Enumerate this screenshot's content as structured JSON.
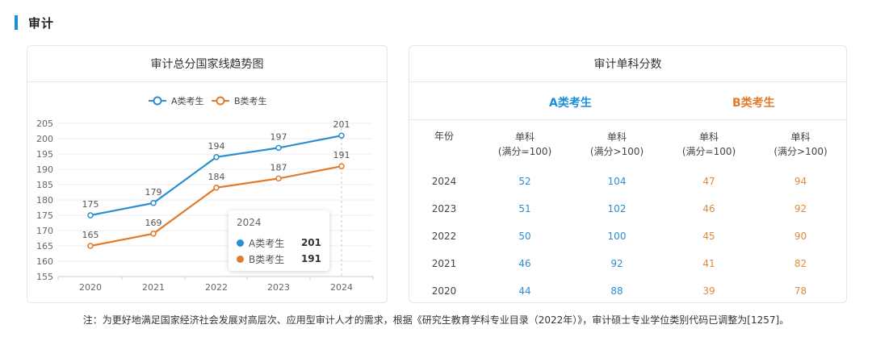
{
  "section": {
    "title": "审计"
  },
  "left_card": {
    "title": "审计总分国家线趋势图"
  },
  "chart_data": {
    "type": "line",
    "title": "审计总分国家线趋势图",
    "x": [
      "2020",
      "2021",
      "2022",
      "2023",
      "2024"
    ],
    "series": [
      {
        "name": "A类考生",
        "values": [
          175,
          179,
          194,
          197,
          201
        ],
        "color": "#2a8ed0"
      },
      {
        "name": "B类考生",
        "values": [
          165,
          169,
          184,
          187,
          191
        ],
        "color": "#e07b2c"
      }
    ],
    "y_ticks": [
      155,
      160,
      165,
      170,
      175,
      180,
      185,
      190,
      195,
      200,
      205
    ],
    "ylim": [
      155,
      205
    ],
    "legend": "top-center",
    "grid": true
  },
  "tooltip": {
    "year": "2024",
    "rows": [
      {
        "name": "A类考生",
        "value": "201",
        "color": "#2a8ed0"
      },
      {
        "name": "B类考生",
        "value": "191",
        "color": "#e07b2c"
      }
    ]
  },
  "right_card": {
    "title": "审计单科分数",
    "group_a": "A类考生",
    "group_b": "B类考生",
    "headers": {
      "year": "年份",
      "c1": [
        "单科",
        "(满分=100)"
      ],
      "c2": [
        "单科",
        "(满分>100)"
      ],
      "c3": [
        "单科",
        "(满分=100)"
      ],
      "c4": [
        "单科",
        "(满分>100)"
      ]
    },
    "rows": [
      {
        "year": "2024",
        "a100": "52",
        "a_over": "104",
        "b100": "47",
        "b_over": "94"
      },
      {
        "year": "2023",
        "a100": "51",
        "a_over": "102",
        "b100": "46",
        "b_over": "92"
      },
      {
        "year": "2022",
        "a100": "50",
        "a_over": "100",
        "b100": "45",
        "b_over": "90"
      },
      {
        "year": "2021",
        "a100": "46",
        "a_over": "92",
        "b100": "41",
        "b_over": "82"
      },
      {
        "year": "2020",
        "a100": "44",
        "a_over": "88",
        "b100": "39",
        "b_over": "78"
      }
    ]
  },
  "note": "注：为更好地满足国家经济社会发展对高层次、应用型审计人才的需求，根据《研究生教育学科专业目录（2022年）》，审计硕士专业学位类别代码已调整为[1257]。"
}
